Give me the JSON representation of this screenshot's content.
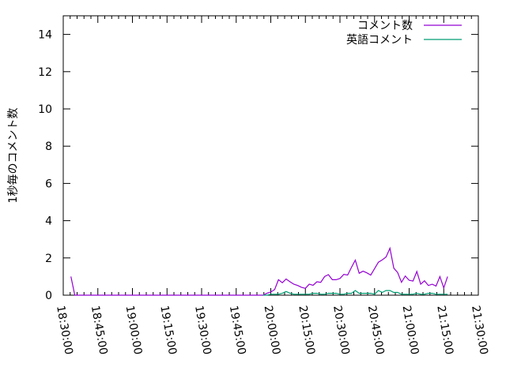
{
  "chart_data": {
    "type": "line",
    "title": "",
    "xlabel": "",
    "ylabel": "1秒毎のコメント数",
    "xlim": [
      "18:30:00",
      "21:30:00"
    ],
    "ylim": [
      0,
      15
    ],
    "xticks": [
      "18:30:00",
      "18:45:00",
      "19:00:00",
      "19:15:00",
      "19:30:00",
      "19:45:00",
      "20:00:00",
      "20:15:00",
      "20:30:00",
      "20:45:00",
      "21:00:00",
      "21:15:00",
      "21:30:00"
    ],
    "yticks": [
      "0",
      "2",
      "4",
      "6",
      "8",
      "10",
      "12",
      "14"
    ],
    "grid": false,
    "legend_placement": "top-right",
    "series": [
      {
        "name": "コメント数",
        "color": "#9400d3",
        "points": [
          [
            "18:33:20",
            1.0
          ],
          [
            "18:35:00",
            0
          ],
          [
            "19:56:40",
            0
          ],
          [
            "19:58:20",
            0.1
          ],
          [
            "20:00:00",
            0.17
          ],
          [
            "20:01:40",
            0.3
          ],
          [
            "20:03:20",
            0.83
          ],
          [
            "20:05:00",
            0.67
          ],
          [
            "20:06:40",
            0.87
          ],
          [
            "20:08:20",
            0.72
          ],
          [
            "20:10:00",
            0.59
          ],
          [
            "20:11:40",
            0.52
          ],
          [
            "20:13:20",
            0.42
          ],
          [
            "20:15:00",
            0.37
          ],
          [
            "20:16:40",
            0.59
          ],
          [
            "20:18:20",
            0.53
          ],
          [
            "20:20:00",
            0.72
          ],
          [
            "20:21:40",
            0.69
          ],
          [
            "20:23:20",
            1.0
          ],
          [
            "20:25:00",
            1.1
          ],
          [
            "20:26:40",
            0.83
          ],
          [
            "20:28:20",
            0.83
          ],
          [
            "20:30:00",
            0.9
          ],
          [
            "20:31:40",
            1.12
          ],
          [
            "20:33:20",
            1.08
          ],
          [
            "20:35:00",
            1.5
          ],
          [
            "20:36:40",
            1.88
          ],
          [
            "20:38:20",
            1.18
          ],
          [
            "20:40:00",
            1.29
          ],
          [
            "20:41:40",
            1.2
          ],
          [
            "20:43:20",
            1.08
          ],
          [
            "20:45:00",
            1.43
          ],
          [
            "20:46:40",
            1.77
          ],
          [
            "20:48:20",
            1.9
          ],
          [
            "20:50:00",
            2.05
          ],
          [
            "20:51:40",
            2.52
          ],
          [
            "20:53:20",
            1.45
          ],
          [
            "20:55:00",
            1.22
          ],
          [
            "20:56:40",
            0.69
          ],
          [
            "20:58:20",
            1.03
          ],
          [
            "21:00:00",
            0.8
          ],
          [
            "21:01:40",
            0.76
          ],
          [
            "21:03:20",
            1.27
          ],
          [
            "21:05:00",
            0.59
          ],
          [
            "21:06:40",
            0.77
          ],
          [
            "21:08:20",
            0.52
          ],
          [
            "21:10:00",
            0.59
          ],
          [
            "21:11:40",
            0.49
          ],
          [
            "21:13:20",
            1.0
          ],
          [
            "21:15:00",
            0.39
          ],
          [
            "21:16:40",
            1.0
          ]
        ]
      },
      {
        "name": "英語コメント",
        "color": "#009e73",
        "points": [
          [
            "19:56:40",
            0
          ],
          [
            "19:58:20",
            0
          ],
          [
            "20:00:00",
            0.05
          ],
          [
            "20:01:40",
            0.05
          ],
          [
            "20:03:20",
            0.05
          ],
          [
            "20:05:00",
            0.1
          ],
          [
            "20:06:40",
            0.2
          ],
          [
            "20:08:20",
            0.1
          ],
          [
            "20:10:00",
            0.05
          ],
          [
            "20:11:40",
            0.05
          ],
          [
            "20:13:20",
            0.05
          ],
          [
            "20:15:00",
            0.05
          ],
          [
            "20:16:40",
            0.05
          ],
          [
            "20:18:20",
            0.1
          ],
          [
            "20:20:00",
            0.1
          ],
          [
            "20:21:40",
            0.05
          ],
          [
            "20:23:20",
            0.05
          ],
          [
            "20:25:00",
            0.1
          ],
          [
            "20:26:40",
            0.1
          ],
          [
            "20:28:20",
            0.1
          ],
          [
            "20:30:00",
            0.05
          ],
          [
            "20:31:40",
            0.05
          ],
          [
            "20:33:20",
            0.1
          ],
          [
            "20:35:00",
            0.1
          ],
          [
            "20:36:40",
            0.25
          ],
          [
            "20:38:20",
            0.1
          ],
          [
            "20:40:00",
            0.1
          ],
          [
            "20:41:40",
            0.1
          ],
          [
            "20:43:20",
            0.1
          ],
          [
            "20:45:00",
            0.05
          ],
          [
            "20:46:40",
            0.25
          ],
          [
            "20:48:20",
            0.15
          ],
          [
            "20:50:00",
            0.25
          ],
          [
            "20:51:40",
            0.25
          ],
          [
            "20:53:20",
            0.15
          ],
          [
            "20:55:00",
            0.15
          ],
          [
            "20:56:40",
            0.05
          ],
          [
            "20:58:20",
            0.05
          ],
          [
            "21:00:00",
            0.05
          ],
          [
            "21:01:40",
            0.05
          ],
          [
            "21:03:20",
            0.1
          ],
          [
            "21:05:00",
            0.05
          ],
          [
            "21:06:40",
            0.05
          ],
          [
            "21:08:20",
            0.1
          ],
          [
            "21:10:00",
            0.1
          ],
          [
            "21:11:40",
            0.05
          ],
          [
            "21:13:20",
            0.05
          ],
          [
            "21:15:00",
            0.05
          ],
          [
            "21:16:40",
            0.05
          ]
        ]
      }
    ]
  }
}
